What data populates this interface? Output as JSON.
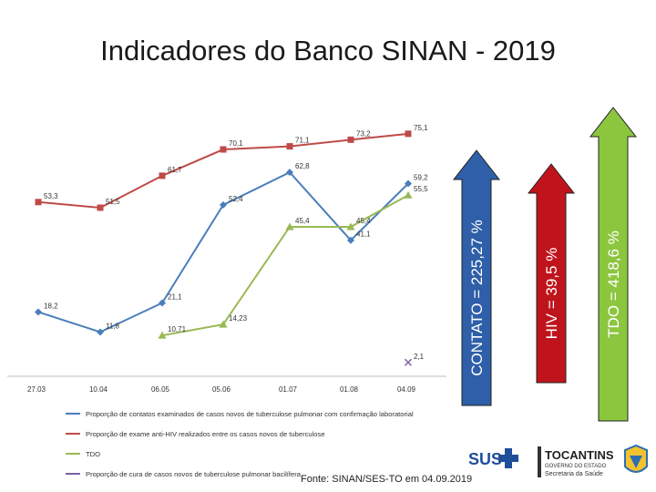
{
  "page": {
    "title": "Indicadores do Banco SINAN - 2019"
  },
  "chart_data": {
    "type": "line",
    "title": "",
    "xlabel": "",
    "ylabel": "",
    "categories": [
      "27.03",
      "10.04",
      "06.05",
      "05.06",
      "01.07",
      "01.08",
      "04.09"
    ],
    "ylim": [
      0,
      80
    ],
    "series": [
      {
        "name": "Proporção de contatos examinados de casos novos de tuberculose pulmonar com confirmação laboratorial",
        "color": "#4a7ebb",
        "marker": "diamond",
        "values": [
          18.2,
          11.8,
          21.1,
          52.4,
          62.8,
          41.1,
          59.2
        ],
        "labels": [
          "18,2",
          "11,8",
          "21,1",
          "52,4",
          "62,8",
          "41,1",
          "59,2"
        ]
      },
      {
        "name": "Proporção de exame anti-HIV realizados entre os casos novos de tuberculose",
        "color": "#be4b48",
        "marker": "square",
        "values": [
          53.3,
          51.5,
          61.7,
          70.1,
          71.1,
          73.2,
          75.1
        ],
        "labels": [
          "53,3",
          "51,5",
          "61,7",
          "70,1",
          "71,1",
          "73,2",
          "75,1"
        ]
      },
      {
        "name": "TDO",
        "color": "#98b954",
        "marker": "triangle",
        "values": [
          null,
          null,
          10.71,
          14.23,
          45.4,
          45.4,
          55.5
        ],
        "labels": [
          "",
          "",
          "10,71",
          "14,23",
          "45,4",
          "45,4",
          "55,5"
        ]
      },
      {
        "name": "Proporção de cura de casos novos de tuberculose pulmonar bacilífera",
        "color": "#7d60a0",
        "marker": "x",
        "values": [
          null,
          null,
          null,
          null,
          null,
          null,
          2.1
        ],
        "labels": [
          "",
          "",
          "",
          "",
          "",
          "",
          "2,1"
        ]
      }
    ],
    "legend_position": "bottom"
  },
  "arrows": [
    {
      "label": "CONTATO = 225,27 %",
      "color": "#2e5fa8"
    },
    {
      "label": "HIV = 39,5 %",
      "color": "#c0141c"
    },
    {
      "label": "TDO = 418,6 %",
      "color": "#8cc63f"
    }
  ],
  "footer": {
    "source": "Fonte: SINAN/SES-TO em 04.09.2019",
    "logo_sus": "SUS",
    "logo_state": "TOCANTINS",
    "logo_state_sub1": "GOVERNO DO ESTADO",
    "logo_state_sub2": "Secretaria da Saúde"
  }
}
